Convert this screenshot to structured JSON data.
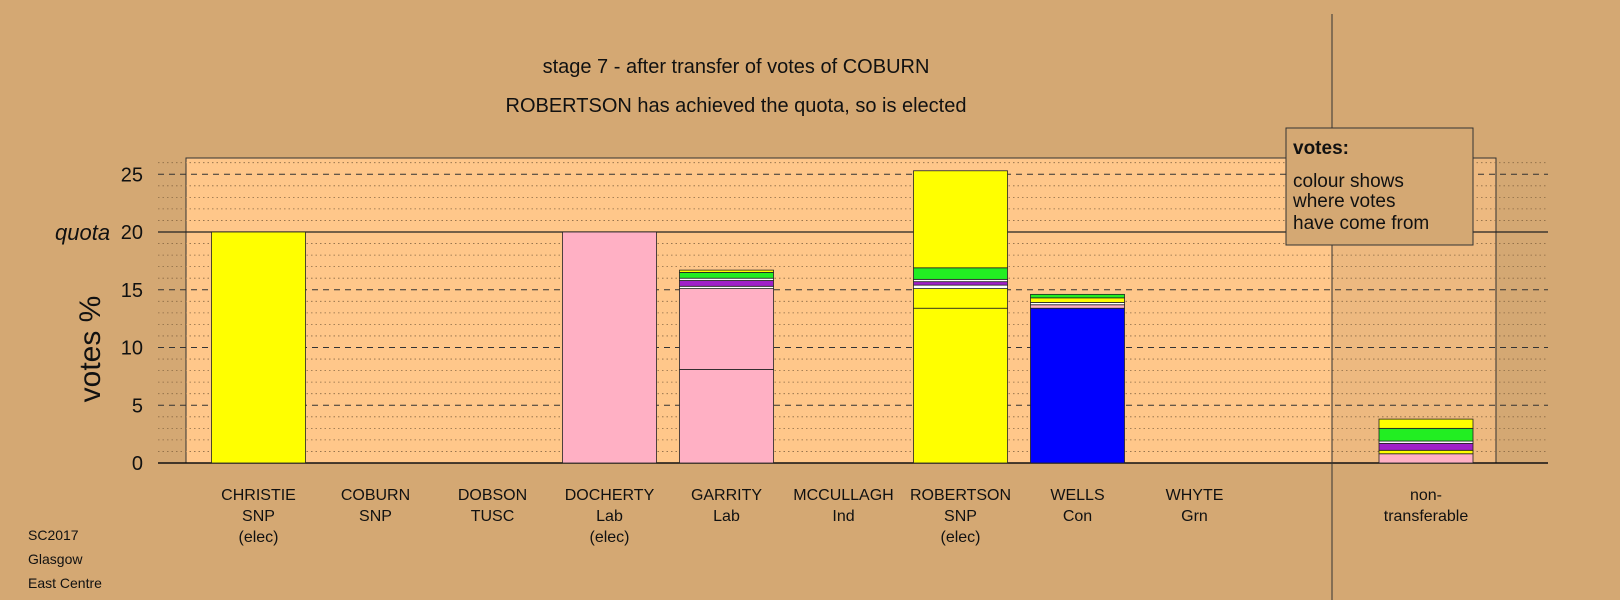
{
  "chart_data": {
    "type": "bar",
    "title": "stage 7 - after transfer of votes of COBURN",
    "subtitle": "ROBERTSON has achieved the quota, so is elected",
    "ylabel": "votes %",
    "ylim": [
      0,
      26.5
    ],
    "yticks": [
      0,
      5,
      10,
      15,
      20,
      25
    ],
    "quota": 20,
    "quota_label": "quota",
    "grid": true,
    "colors": {
      "background": "#d4a873",
      "plot": "#ffc78a",
      "SNP": "#ffff00",
      "Lab": "#ffb0c4",
      "Con": "#0000ff",
      "Grn": "#22ee22",
      "TUSC": "#a020c8",
      "Ind": "#ffffff"
    },
    "candidates": [
      {
        "name": "CHRISTIE",
        "party": "SNP",
        "status": "(elec)",
        "segments": [
          {
            "party": "SNP",
            "value": 20.0
          }
        ]
      },
      {
        "name": "COBURN",
        "party": "SNP",
        "status": "",
        "segments": []
      },
      {
        "name": "DOBSON",
        "party": "TUSC",
        "status": "",
        "segments": []
      },
      {
        "name": "DOCHERTY",
        "party": "Lab",
        "status": "(elec)",
        "segments": [
          {
            "party": "Lab",
            "value": 20.0
          }
        ]
      },
      {
        "name": "GARRITY",
        "party": "Lab",
        "status": "",
        "segments": [
          {
            "party": "Lab",
            "value": 8.1
          },
          {
            "party": "Lab",
            "value": 7.0
          },
          {
            "party": "Ind",
            "value": 0.2
          },
          {
            "party": "TUSC",
            "value": 0.5
          },
          {
            "party": "Ind",
            "value": 0.2
          },
          {
            "party": "Grn",
            "value": 0.5
          },
          {
            "party": "SNP",
            "value": 0.2
          }
        ]
      },
      {
        "name": "MCCULLAGH",
        "party": "Ind",
        "status": "",
        "segments": []
      },
      {
        "name": "ROBERTSON",
        "party": "SNP",
        "status": "(elec)",
        "segments": [
          {
            "party": "SNP",
            "value": 13.4
          },
          {
            "party": "SNP",
            "value": 1.7
          },
          {
            "party": "Ind",
            "value": 0.3
          },
          {
            "party": "TUSC",
            "value": 0.3
          },
          {
            "party": "Ind",
            "value": 0.2
          },
          {
            "party": "Grn",
            "value": 1.0
          },
          {
            "party": "SNP",
            "value": 8.4
          }
        ]
      },
      {
        "name": "WELLS",
        "party": "Con",
        "status": "",
        "segments": [
          {
            "party": "Con",
            "value": 13.4
          },
          {
            "party": "Lab",
            "value": 0.3
          },
          {
            "party": "Ind",
            "value": 0.2
          },
          {
            "party": "SNP",
            "value": 0.4
          },
          {
            "party": "Grn",
            "value": 0.3
          }
        ]
      },
      {
        "name": "WHYTE",
        "party": "Grn",
        "status": "",
        "segments": []
      }
    ],
    "nontransferable": {
      "label_line1": "non-",
      "label_line2": "transferable",
      "segments": [
        {
          "party": "Lab",
          "value": 0.8
        },
        {
          "party": "SNP",
          "value": 0.3
        },
        {
          "party": "TUSC",
          "value": 0.6
        },
        {
          "party": "Ind",
          "value": 0.2
        },
        {
          "party": "Grn",
          "value": 1.1
        },
        {
          "party": "SNP",
          "value": 0.8
        }
      ]
    },
    "legend": {
      "title": "votes:",
      "lines": [
        "colour shows",
        "where votes",
        "have come from"
      ]
    }
  },
  "footer": {
    "line1": "SC2017",
    "line2": "Glasgow",
    "line3": "East Centre"
  }
}
